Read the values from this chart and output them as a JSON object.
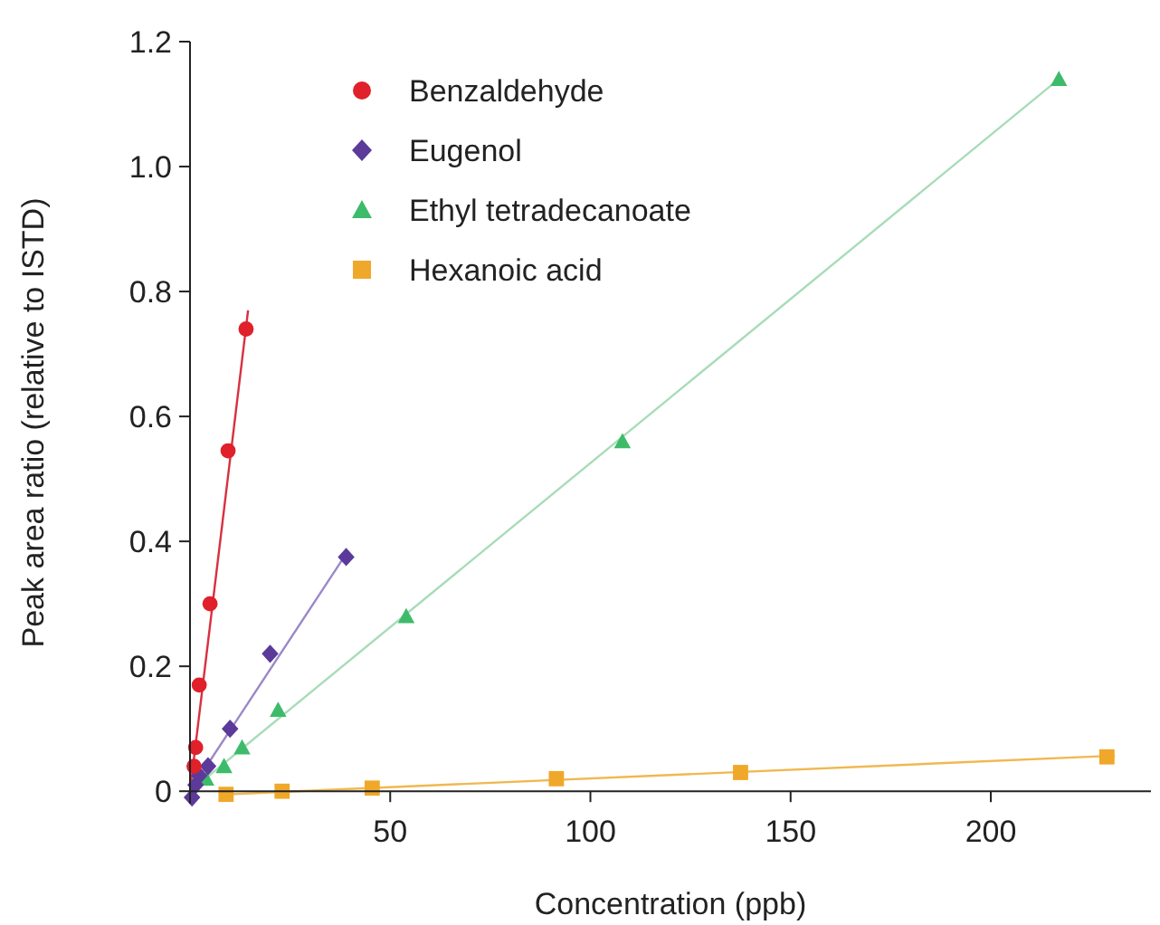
{
  "chart_data": {
    "type": "scatter",
    "xlabel": "Concentration (ppb)",
    "ylabel": "Peak area ratio (relative to ISTD)",
    "xlim": [
      0,
      240
    ],
    "ylim": [
      -0.02,
      1.2
    ],
    "xticks": [
      50,
      100,
      150,
      200
    ],
    "yticks": [
      0,
      0.2,
      0.4,
      0.6,
      0.8,
      {
        "value": 1,
        "label": "1.0"
      },
      1.2
    ],
    "grid": false,
    "legend": "top left",
    "series": [
      {
        "name": "Benzaldehyde",
        "color": "#e0202a",
        "marker": "circle",
        "x": [
          1,
          1.4,
          2.3,
          5,
          9.5,
          14
        ],
        "values": [
          0.04,
          0.07,
          0.17,
          0.3,
          0.545,
          0.74
        ]
      },
      {
        "name": "Eugenol",
        "color": "#5b3a9a",
        "marker": "diamond",
        "x": [
          0.5,
          1.4,
          2.3,
          4.5,
          10,
          20,
          39
        ],
        "values": [
          -0.01,
          0.01,
          0.025,
          0.04,
          0.1,
          0.22,
          0.375
        ]
      },
      {
        "name": "Ethyl tetradecanoate",
        "color": "#3dbb6a",
        "marker": "triangle",
        "x": [
          4,
          8.5,
          13,
          22,
          54,
          108,
          217
        ],
        "values": [
          0.02,
          0.04,
          0.07,
          0.13,
          0.28,
          0.56,
          1.14
        ]
      },
      {
        "name": "Hexanoic acid",
        "color": "#f0a82a",
        "marker": "square",
        "x": [
          9,
          23,
          45.5,
          91.5,
          137.5,
          229
        ],
        "values": [
          -0.005,
          0,
          0.005,
          0.02,
          0.03,
          0.055
        ]
      },
      {
        "type": "line",
        "color": "#d83040",
        "marker": "none",
        "x": [
          0,
          14.5
        ],
        "values": [
          0,
          0.77
        ]
      },
      {
        "type": "line",
        "color": "#9a88c8",
        "marker": "none",
        "x": [
          0,
          39
        ],
        "values": [
          0,
          0.38
        ]
      },
      {
        "type": "line",
        "color": "#a8dcb8",
        "marker": "none",
        "x": [
          0,
          217
        ],
        "values": [
          0,
          1.14
        ]
      },
      {
        "type": "line",
        "color": "#f0b850",
        "marker": "none",
        "x": [
          9,
          231
        ],
        "values": [
          -0.005,
          0.057
        ]
      }
    ]
  }
}
